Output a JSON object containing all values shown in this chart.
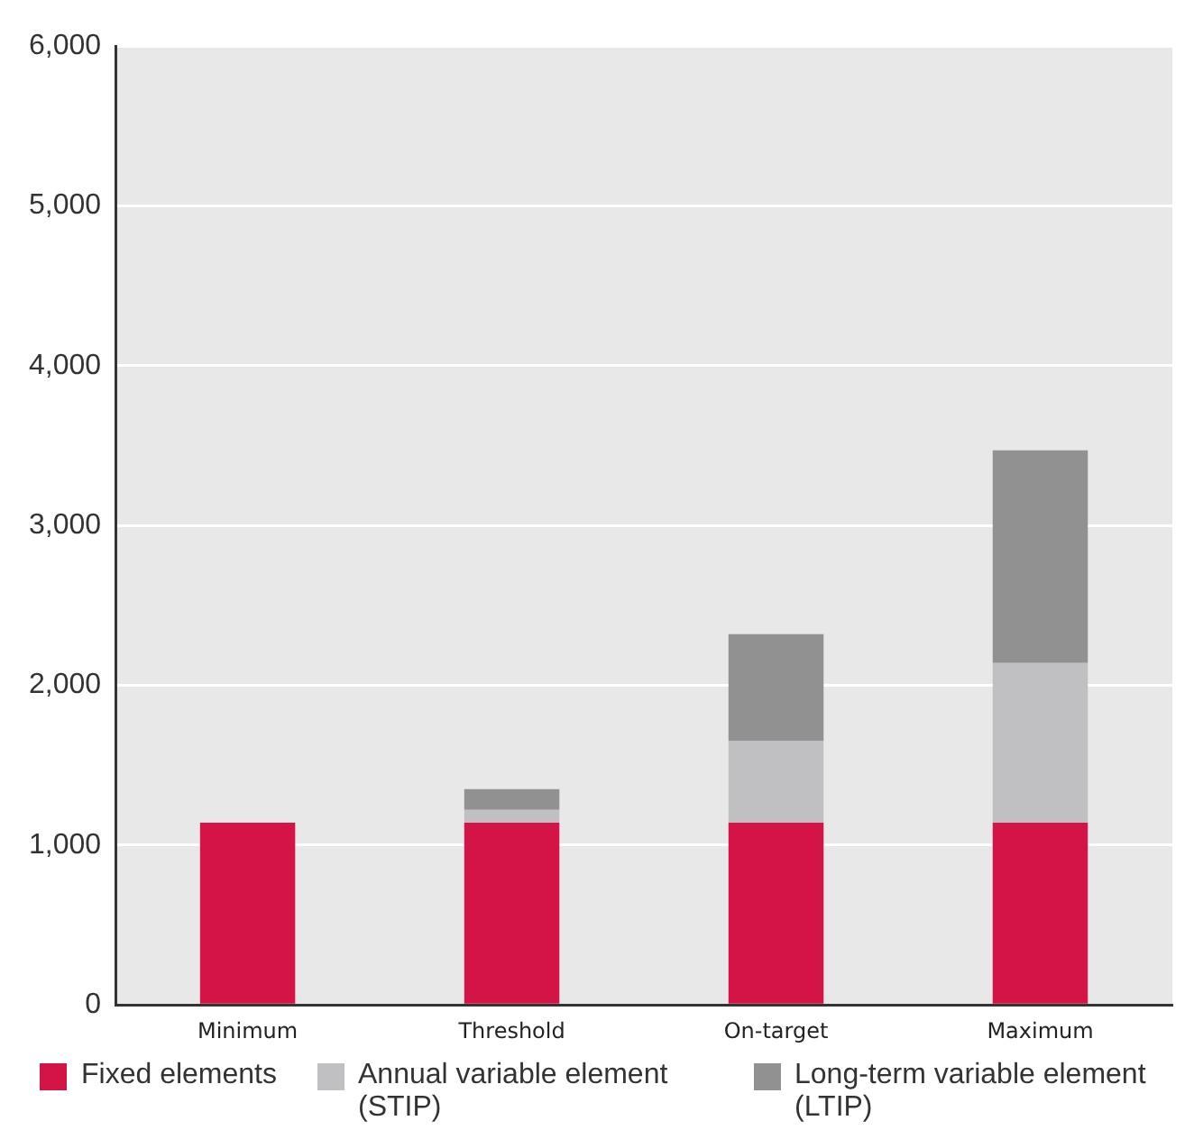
{
  "chart_data": {
    "type": "bar",
    "stacked": true,
    "categories": [
      "Minimum",
      "Threshold",
      "On-target",
      "Maximum"
    ],
    "series": [
      {
        "name": "Fixed elements",
        "color": "#d41446",
        "values": [
          1140,
          1140,
          1140,
          1140
        ]
      },
      {
        "name": "Annual variable element (STIP)",
        "color": "#c0bfc1",
        "values": [
          0,
          80,
          510,
          1000
        ]
      },
      {
        "name": "Long-term variable element (LTIP)",
        "color": "#919192",
        "values": [
          0,
          130,
          670,
          1330
        ]
      }
    ],
    "ylim": [
      0,
      6000
    ],
    "yticks": [
      0,
      {
        "value": 1000,
        "label": "1,000"
      },
      {
        "value": 2000,
        "label": "2,000"
      },
      {
        "value": 3000,
        "label": "3,000"
      },
      {
        "value": 4000,
        "label": "4,000"
      },
      {
        "value": 5000,
        "label": "5,000"
      },
      {
        "value": 6000,
        "label": "6,000"
      }
    ],
    "grid": "y",
    "legend": "bottom"
  }
}
